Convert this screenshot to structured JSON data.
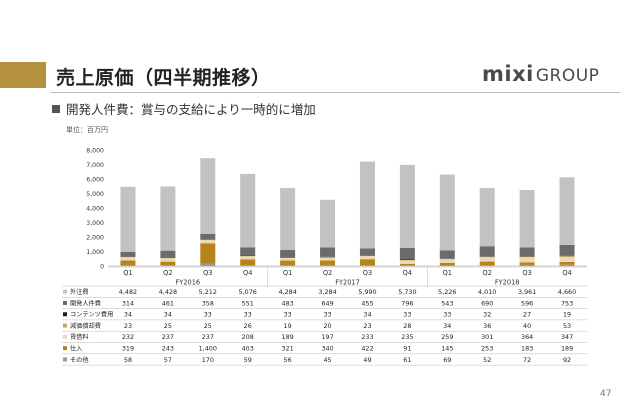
{
  "slide": {
    "title": "売上原価（四半期推移）",
    "bullet": "開発人件費：賞与の支給により一時的に増加",
    "unit": "単位：百万円",
    "page_number": "47",
    "logo_main": "mixi",
    "logo_sub": "GROUP"
  },
  "colors": {
    "accent": "#b5923e",
    "外注費": "#c2c2c2",
    "開発人件費": "#6b6b6b",
    "コンテンツ費用": "#1e1e1e",
    "減価償却費": "#c9a45c",
    "賃借料": "#ead9b2",
    "仕入": "#b5841c",
    "その他": "#9a9a9a"
  },
  "chart_data": {
    "type": "bar",
    "stacked": true,
    "ylim": [
      0,
      8000
    ],
    "yticks": [
      "0",
      "1,000",
      "2,000",
      "3,000",
      "4,000",
      "5,000",
      "6,000",
      "7,000",
      "8,000"
    ],
    "categories": [
      "Q1",
      "Q2",
      "Q3",
      "Q4",
      "Q1",
      "Q2",
      "Q3",
      "Q4",
      "Q1",
      "Q2",
      "Q3",
      "Q4"
    ],
    "fiscal_years": [
      {
        "label": "FY2016",
        "quarters": 4
      },
      {
        "label": "FY2017",
        "quarters": 4
      },
      {
        "label": "FY2018",
        "quarters": 4
      }
    ],
    "series": [
      {
        "name": "外注費",
        "values": [
          4482,
          4428,
          5212,
          5076,
          4284,
          3284,
          5990,
          5730,
          5226,
          4010,
          3961,
          4660
        ],
        "display": [
          "4,482",
          "4,428",
          "5,212",
          "5,076",
          "4,284",
          "3,284",
          "5,990",
          "5,730",
          "5,226",
          "4,010",
          "3,961",
          "4,660"
        ]
      },
      {
        "name": "開発人件費",
        "values": [
          314,
          461,
          358,
          551,
          483,
          649,
          455,
          796,
          543,
          690,
          596,
          753
        ],
        "display": [
          "314",
          "461",
          "358",
          "551",
          "483",
          "649",
          "455",
          "796",
          "543",
          "690",
          "596",
          "753"
        ]
      },
      {
        "name": "コンテンツ費用",
        "values": [
          34,
          34,
          33,
          33,
          33,
          33,
          34,
          33,
          33,
          32,
          27,
          19
        ],
        "display": [
          "34",
          "34",
          "33",
          "33",
          "33",
          "33",
          "34",
          "33",
          "33",
          "32",
          "27",
          "19"
        ]
      },
      {
        "name": "減価償却費",
        "values": [
          23,
          25,
          25,
          26,
          19,
          20,
          23,
          28,
          34,
          36,
          40,
          53
        ],
        "display": [
          "23",
          "25",
          "25",
          "26",
          "19",
          "20",
          "23",
          "28",
          "34",
          "36",
          "40",
          "53"
        ]
      },
      {
        "name": "賃借料",
        "values": [
          232,
          237,
          237,
          208,
          189,
          197,
          233,
          235,
          259,
          301,
          364,
          347
        ],
        "display": [
          "232",
          "237",
          "237",
          "208",
          "189",
          "197",
          "233",
          "235",
          "259",
          "301",
          "364",
          "347"
        ]
      },
      {
        "name": "仕入",
        "values": [
          319,
          243,
          1400,
          403,
          321,
          340,
          422,
          91,
          145,
          253,
          183,
          189
        ],
        "display": [
          "319",
          "243",
          "1,400",
          "403",
          "321",
          "340",
          "422",
          "91",
          "145",
          "253",
          "183",
          "189"
        ]
      },
      {
        "name": "その他",
        "values": [
          58,
          57,
          170,
          59,
          56,
          45,
          49,
          61,
          69,
          52,
          72,
          92
        ],
        "display": [
          "58",
          "57",
          "170",
          "59",
          "56",
          "45",
          "49",
          "61",
          "69",
          "52",
          "72",
          "92"
        ]
      }
    ]
  }
}
